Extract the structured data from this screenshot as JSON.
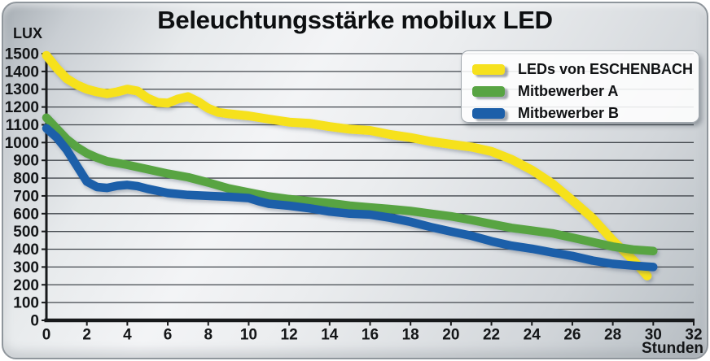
{
  "title": "Beleuchtungsstärke mobilux LED",
  "panel": {
    "border_color": "#8f969c",
    "background_light": "#f3f4f6",
    "background_dark": "#a7aeb4",
    "grid_color": "#42474d",
    "axis_color": "#17191b",
    "text_color": "#141618"
  },
  "chart_data": {
    "type": "line",
    "title": "Beleuchtungsstärke mobilux LED",
    "ylabel": "LUX",
    "xlabel": "Stunden",
    "xlim": [
      0,
      32
    ],
    "ylim": [
      0,
      1500
    ],
    "x_ticks": [
      0,
      2,
      4,
      6,
      8,
      10,
      12,
      14,
      16,
      18,
      20,
      22,
      24,
      26,
      28,
      30,
      32
    ],
    "y_ticks": [
      0,
      100,
      200,
      300,
      400,
      500,
      600,
      700,
      800,
      900,
      1000,
      1100,
      1200,
      1300,
      1400,
      1500
    ],
    "grid": "horizontal",
    "legend_position": "top-right",
    "series": [
      {
        "name": "LEDs von ESCHENBACH",
        "color": "#f6e11e",
        "x": [
          0,
          0.5,
          1,
          1.5,
          2,
          2.5,
          3,
          3.5,
          4,
          4.5,
          5,
          5.5,
          6,
          6.5,
          7,
          7.5,
          8,
          8.5,
          9,
          10,
          11,
          12,
          13,
          14,
          15,
          16,
          17,
          18,
          19,
          20,
          21,
          22,
          23,
          24,
          25,
          26,
          27,
          28,
          29,
          29.7
        ],
        "y": [
          1490,
          1420,
          1360,
          1325,
          1300,
          1285,
          1275,
          1285,
          1300,
          1290,
          1250,
          1225,
          1222,
          1245,
          1258,
          1230,
          1192,
          1170,
          1162,
          1150,
          1132,
          1115,
          1108,
          1090,
          1075,
          1068,
          1045,
          1028,
          1006,
          990,
          975,
          950,
          905,
          845,
          770,
          675,
          575,
          450,
          340,
          250
        ]
      },
      {
        "name": "Mitbewerber A",
        "color": "#58a443",
        "x": [
          0,
          0.5,
          1,
          1.5,
          2,
          2.5,
          3,
          3.5,
          4,
          5,
          6,
          7,
          8,
          9,
          10,
          11,
          12,
          13,
          14,
          15,
          16,
          17,
          18,
          19,
          20,
          21,
          22,
          23,
          24,
          25,
          26,
          27,
          28,
          29,
          30
        ],
        "y": [
          1140,
          1080,
          1020,
          975,
          940,
          915,
          895,
          885,
          875,
          850,
          825,
          805,
          775,
          742,
          720,
          697,
          682,
          670,
          660,
          645,
          635,
          626,
          615,
          600,
          585,
          565,
          542,
          520,
          505,
          490,
          465,
          440,
          415,
          398,
          390
        ]
      },
      {
        "name": "Mitbewerber B",
        "color": "#1c5fa9",
        "x": [
          0,
          0.5,
          1,
          1.5,
          2,
          2.5,
          3,
          3.5,
          4,
          4.5,
          5,
          6,
          7,
          8,
          9,
          10,
          10.5,
          11,
          12,
          13,
          14,
          15,
          16,
          17,
          18,
          19,
          20,
          21,
          22,
          23,
          24,
          25,
          26,
          27,
          28,
          29,
          30
        ],
        "y": [
          1080,
          1030,
          960,
          870,
          780,
          750,
          745,
          757,
          762,
          755,
          740,
          716,
          705,
          700,
          695,
          688,
          670,
          656,
          645,
          630,
          612,
          600,
          595,
          577,
          554,
          525,
          500,
          476,
          445,
          420,
          403,
          382,
          362,
          336,
          318,
          308,
          300
        ]
      }
    ]
  }
}
